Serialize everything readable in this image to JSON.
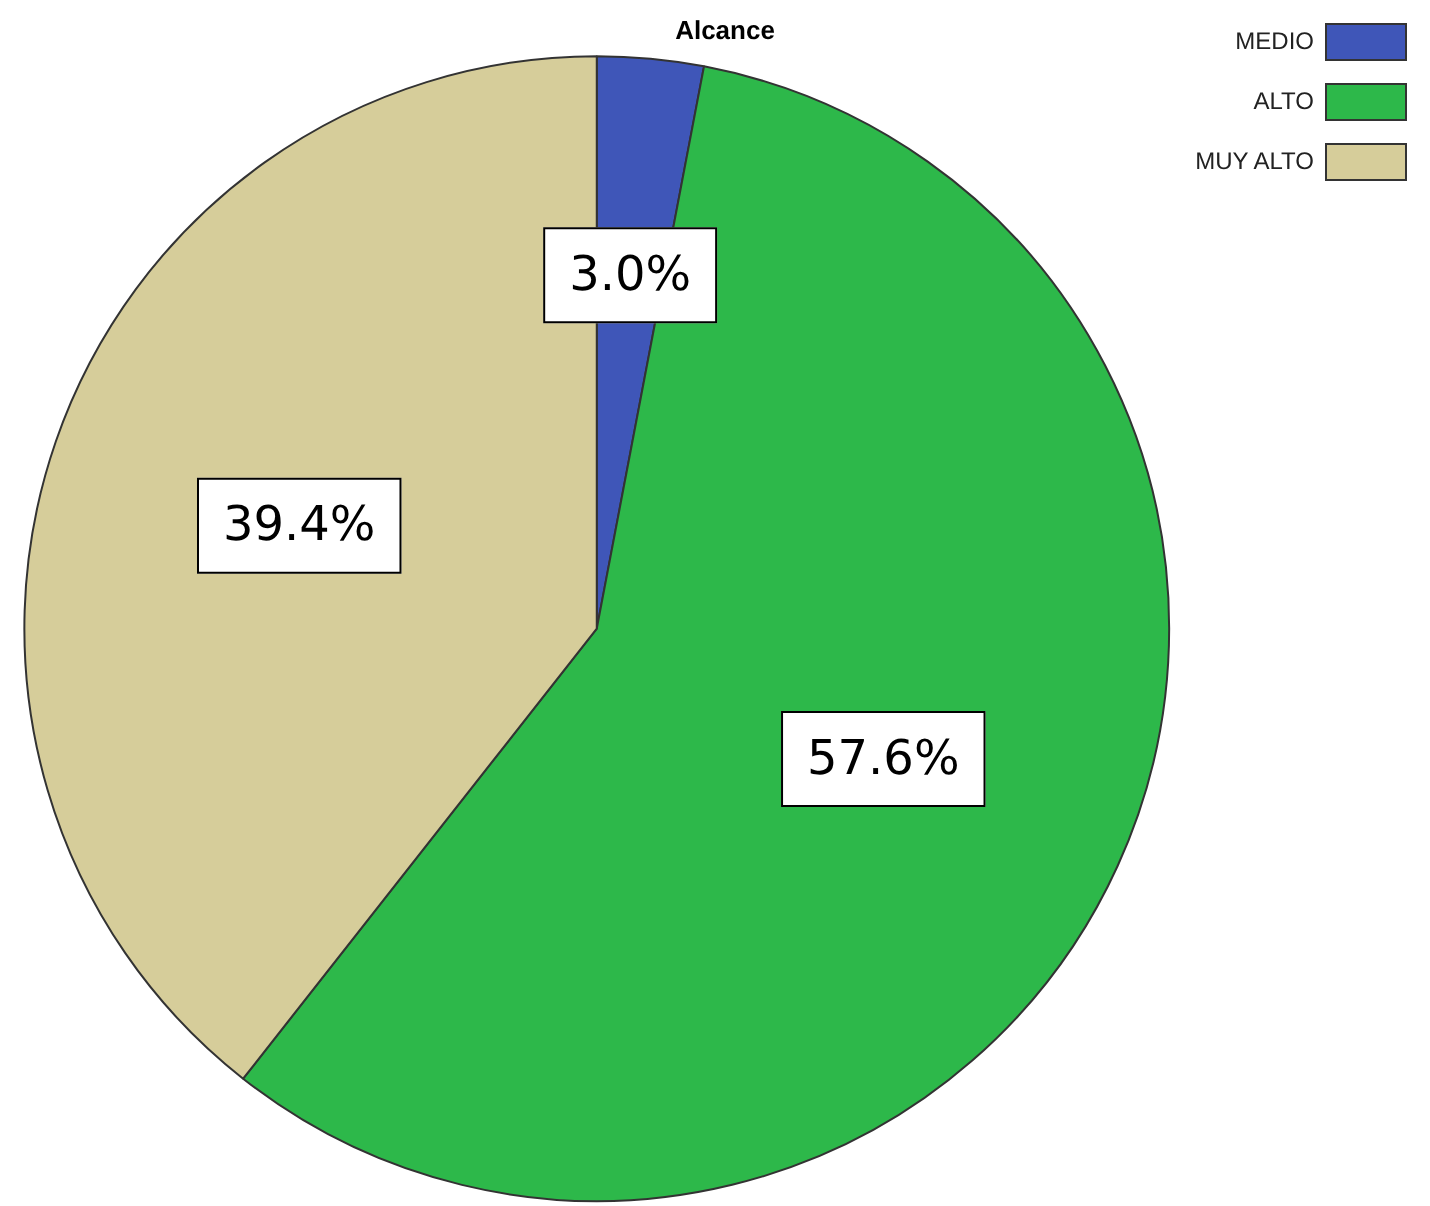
{
  "chart_data": {
    "type": "pie",
    "title": "Alcance",
    "categories": [
      "MEDIO",
      "ALTO",
      "MUY ALTO"
    ],
    "values": [
      3.0,
      57.6,
      39.4
    ],
    "colors": [
      "#3f56b8",
      "#2db84a",
      "#d6cd9a"
    ],
    "value_labels": [
      "3.0%",
      "57.6%",
      "39.4%"
    ],
    "legend": "top right"
  }
}
